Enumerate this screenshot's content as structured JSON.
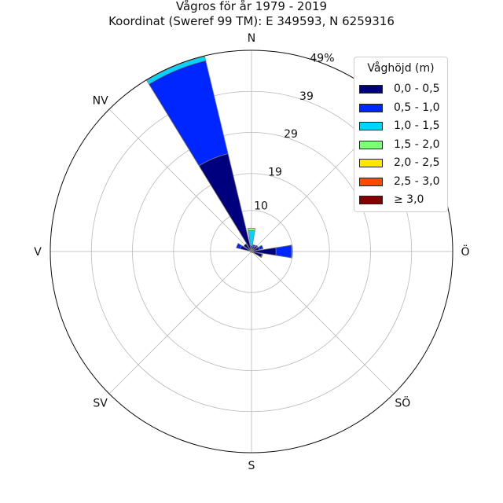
{
  "title_line1": "Vågros för år 1979 - 2019",
  "title_line2": "Koordinat (Sweref 99 TM): E 349593, N 6259316",
  "chart_data": {
    "type": "windrose",
    "directions": [
      "N",
      "NNÖ",
      "NÖ",
      "ÖNÖ",
      "Ö",
      "ÖSÖ",
      "SÖ",
      "SSÖ",
      "S",
      "SSV",
      "SV",
      "VSV",
      "V",
      "VNV",
      "NV",
      "NNV"
    ],
    "compass_labels": [
      "N",
      "NÖ",
      "Ö",
      "SÖ",
      "S",
      "SV",
      "V",
      "NV"
    ],
    "radial_ticks": [
      "10",
      "19",
      "29",
      "39",
      "49%"
    ],
    "rmax": 49,
    "grid": true,
    "legend_title": "Våghöjd (m)",
    "legend_position": "top-right",
    "series": [
      {
        "name": "0,0 - 0,5",
        "color": "#00007f",
        "values": [
          0.8,
          1.3,
          1.6,
          2.0,
          6.0,
          2.6,
          0.4,
          0.2,
          0.1,
          0.1,
          0.1,
          0.2,
          0.3,
          2.8,
          2.3,
          24.5
        ]
      },
      {
        "name": "0,5 - 1,0",
        "color": "#0026ff",
        "values": [
          0.6,
          0.4,
          0.3,
          0.9,
          3.8,
          0.2,
          0.0,
          0.0,
          0.0,
          0.0,
          0.0,
          0.0,
          0.0,
          1.0,
          0.0,
          23.3
        ]
      },
      {
        "name": "1,0 - 1,5",
        "color": "#00d4ff",
        "values": [
          3.7,
          0.0,
          0.0,
          0.0,
          0.2,
          0.0,
          0.0,
          0.0,
          0.0,
          0.0,
          0.0,
          0.0,
          0.0,
          0.0,
          0.0,
          1.1
        ]
      },
      {
        "name": "1,5 - 2,0",
        "color": "#7dff7a",
        "values": [
          0.6,
          0.0,
          0.0,
          0.0,
          0.0,
          0.0,
          0.0,
          0.0,
          0.0,
          0.0,
          0.0,
          0.0,
          0.0,
          0.0,
          0.0,
          0.0
        ]
      },
      {
        "name": "2,0 - 2,5",
        "color": "#ffe600",
        "values": [
          0.0,
          0.0,
          0.0,
          0.0,
          0.0,
          0.0,
          0.0,
          0.0,
          0.0,
          0.0,
          0.0,
          0.0,
          0.0,
          0.0,
          0.0,
          0.0
        ]
      },
      {
        "name": "2,5 - 3,0",
        "color": "#ff4800",
        "values": [
          0.0,
          0.0,
          0.0,
          0.0,
          0.0,
          0.0,
          0.0,
          0.0,
          0.0,
          0.0,
          0.0,
          0.0,
          0.0,
          0.0,
          0.0,
          0.0
        ]
      },
      {
        "name": "≥ 3,0",
        "color": "#7f0000",
        "values": [
          0.0,
          0.0,
          0.0,
          0.0,
          0.0,
          0.0,
          0.0,
          0.0,
          0.0,
          0.0,
          0.0,
          0.0,
          0.0,
          0.0,
          0.0,
          0.0
        ]
      }
    ]
  }
}
